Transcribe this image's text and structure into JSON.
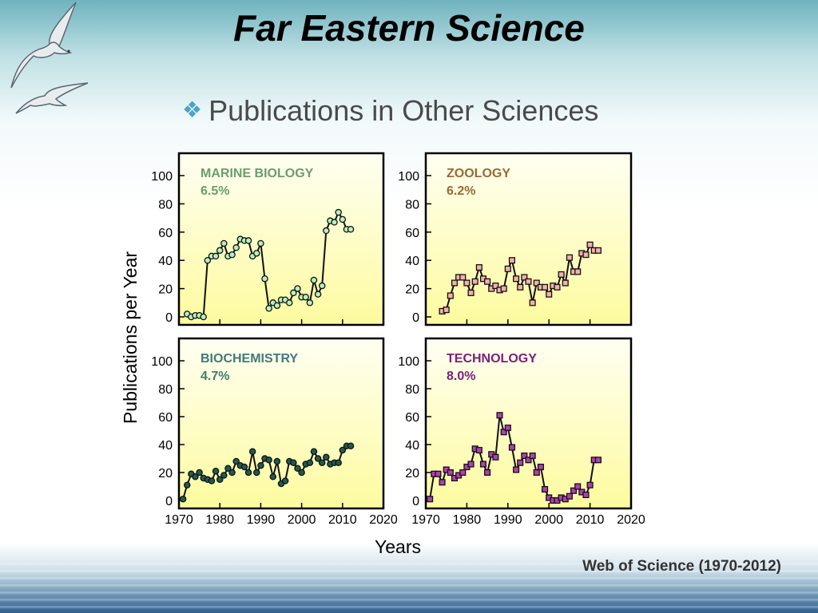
{
  "slide": {
    "title": "Far Eastern Science",
    "subtitle": "Publications in Other Sciences",
    "source": "Web of Science (1970-2012)",
    "bullet_icon": "diamond-bullet-icon",
    "decoration_icon": "seagull-icon"
  },
  "chart_data": {
    "type": "line",
    "ylabel": "Publications per Year",
    "xlabel": "Years",
    "xlim": [
      1970,
      2020
    ],
    "ylim": [
      0,
      110
    ],
    "x_ticks": [
      1970,
      1980,
      1990,
      2000,
      2010,
      2020
    ],
    "y_ticks": [
      0,
      20,
      40,
      60,
      80,
      100
    ],
    "panels": [
      {
        "name": "MARINE BIOLOGY",
        "share": "6.5%",
        "color": "#6a9d6e",
        "marker_fill": "#b7f0c0",
        "marker": "circle",
        "x": [
          1972,
          1973,
          1974,
          1975,
          1976,
          1977,
          1978,
          1979,
          1980,
          1981,
          1982,
          1983,
          1984,
          1985,
          1986,
          1987,
          1988,
          1989,
          1990,
          1991,
          1992,
          1993,
          1994,
          1995,
          1996,
          1997,
          1998,
          1999,
          2000,
          2001,
          2002,
          2003,
          2004,
          2005,
          2006,
          2007,
          2008,
          2009,
          2010,
          2011,
          2012
        ],
        "values": [
          2,
          0,
          1,
          1,
          0,
          40,
          43,
          43,
          47,
          52,
          43,
          44,
          49,
          55,
          54,
          54,
          43,
          45,
          52,
          27,
          6,
          10,
          8,
          12,
          12,
          10,
          17,
          20,
          14,
          14,
          10,
          26,
          16,
          22,
          61,
          68,
          67,
          74,
          69,
          62,
          62
        ]
      },
      {
        "name": "ZOOLOGY",
        "share": "6.2%",
        "color": "#9a6a32",
        "marker_fill": "#f4b0b0",
        "marker": "square",
        "x": [
          1974,
          1975,
          1976,
          1977,
          1978,
          1979,
          1980,
          1981,
          1982,
          1983,
          1984,
          1985,
          1986,
          1987,
          1988,
          1989,
          1990,
          1991,
          1992,
          1993,
          1994,
          1995,
          1996,
          1997,
          1998,
          1999,
          2000,
          2001,
          2002,
          2003,
          2004,
          2005,
          2006,
          2007,
          2008,
          2009,
          2010,
          2011,
          2012
        ],
        "values": [
          4,
          5,
          15,
          24,
          28,
          28,
          24,
          17,
          25,
          35,
          27,
          25,
          20,
          22,
          19,
          20,
          34,
          40,
          27,
          21,
          28,
          25,
          10,
          24,
          21,
          21,
          16,
          22,
          21,
          30,
          24,
          42,
          32,
          32,
          45,
          44,
          51,
          47,
          47
        ]
      },
      {
        "name": "BIOCHEMISTRY",
        "share": "4.7%",
        "color": "#3f7a78",
        "marker_fill": "#1f5a50",
        "marker": "circle",
        "x": [
          1971,
          1972,
          1973,
          1974,
          1975,
          1976,
          1977,
          1978,
          1979,
          1980,
          1981,
          1982,
          1983,
          1984,
          1985,
          1986,
          1987,
          1988,
          1989,
          1990,
          1991,
          1992,
          1993,
          1994,
          1995,
          1996,
          1997,
          1998,
          1999,
          2000,
          2001,
          2002,
          2003,
          2004,
          2005,
          2006,
          2007,
          2008,
          2009,
          2010,
          2011,
          2012
        ],
        "values": [
          1,
          11,
          19,
          17,
          20,
          16,
          15,
          14,
          21,
          15,
          18,
          23,
          20,
          28,
          25,
          24,
          20,
          35,
          20,
          25,
          30,
          29,
          17,
          28,
          12,
          14,
          28,
          27,
          23,
          20,
          26,
          27,
          35,
          30,
          27,
          31,
          26,
          27,
          27,
          36,
          39,
          39
        ]
      },
      {
        "name": "TECHNOLOGY",
        "share": "8.0%",
        "color": "#7a1f7a",
        "marker_fill": "#b03fb0",
        "marker": "square",
        "x": [
          1971,
          1972,
          1973,
          1974,
          1975,
          1976,
          1977,
          1978,
          1979,
          1980,
          1981,
          1982,
          1983,
          1984,
          1985,
          1986,
          1987,
          1988,
          1989,
          1990,
          1991,
          1992,
          1993,
          1994,
          1995,
          1996,
          1997,
          1998,
          1999,
          2000,
          2001,
          2002,
          2003,
          2004,
          2005,
          2006,
          2007,
          2008,
          2009,
          2010,
          2011,
          2012
        ],
        "values": [
          1,
          19,
          19,
          13,
          22,
          20,
          16,
          18,
          20,
          24,
          26,
          37,
          36,
          26,
          20,
          33,
          31,
          61,
          49,
          52,
          38,
          22,
          27,
          32,
          29,
          32,
          20,
          24,
          8,
          2,
          0,
          0,
          2,
          1,
          3,
          7,
          10,
          6,
          4,
          11,
          29,
          29
        ]
      }
    ]
  }
}
